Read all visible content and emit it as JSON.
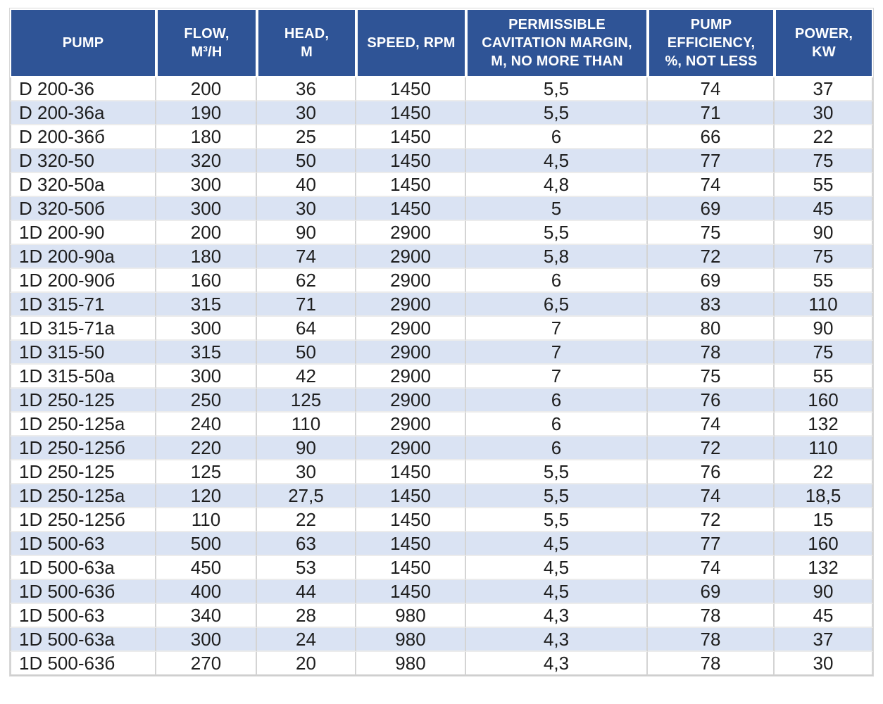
{
  "colors": {
    "header_bg": "#2F5496",
    "header_text": "#FFFFFF",
    "row_bg": "#FFFFFF",
    "row_alt_bg": "#DAE3F3",
    "cell_text": "#1E1E1E",
    "grid_line": "#D4D4D4"
  },
  "table": {
    "columns": [
      {
        "key": "pump",
        "label": "PUMP"
      },
      {
        "key": "flow",
        "label": "FLOW,\nM³/H"
      },
      {
        "key": "head",
        "label": "HEAD,\nM"
      },
      {
        "key": "speed",
        "label": "SPEED, RPM"
      },
      {
        "key": "cavitation",
        "label": "PERMISSIBLE\nCAVITATION MARGIN,\nM, NO MORE THAN"
      },
      {
        "key": "efficiency",
        "label": "PUMP\nEFFICIENCY,\n%, NOT LESS"
      },
      {
        "key": "power",
        "label": "POWER,\nKW"
      }
    ],
    "rows": [
      [
        "D 200-36",
        "200",
        "36",
        "1450",
        "5,5",
        "74",
        "37"
      ],
      [
        "D 200-36a",
        "190",
        "30",
        "1450",
        "5,5",
        "71",
        "30"
      ],
      [
        "D 200-36б",
        "180",
        "25",
        "1450",
        "6",
        "66",
        "22"
      ],
      [
        "D 320-50",
        "320",
        "50",
        "1450",
        "4,5",
        "77",
        "75"
      ],
      [
        "D 320-50a",
        "300",
        "40",
        "1450",
        "4,8",
        "74",
        "55"
      ],
      [
        "D 320-50б",
        "300",
        "30",
        "1450",
        "5",
        "69",
        "45"
      ],
      [
        "1D 200-90",
        "200",
        "90",
        "2900",
        "5,5",
        "75",
        "90"
      ],
      [
        "1D 200-90a",
        "180",
        "74",
        "2900",
        "5,8",
        "72",
        "75"
      ],
      [
        "1D 200-90б",
        "160",
        "62",
        "2900",
        "6",
        "69",
        "55"
      ],
      [
        "1D 315-71",
        "315",
        "71",
        "2900",
        "6,5",
        "83",
        "110"
      ],
      [
        "1D 315-71a",
        "300",
        "64",
        "2900",
        "7",
        "80",
        "90"
      ],
      [
        "1D 315-50",
        "315",
        "50",
        "2900",
        "7",
        "78",
        "75"
      ],
      [
        "1D 315-50a",
        "300",
        "42",
        "2900",
        "7",
        "75",
        "55"
      ],
      [
        "1D 250-125",
        "250",
        "125",
        "2900",
        "6",
        "76",
        "160"
      ],
      [
        "1D 250-125a",
        "240",
        "110",
        "2900",
        "6",
        "74",
        "132"
      ],
      [
        "1D 250-125б",
        "220",
        "90",
        "2900",
        "6",
        "72",
        "110"
      ],
      [
        "1D 250-125",
        "125",
        "30",
        "1450",
        "5,5",
        "76",
        "22"
      ],
      [
        "1D 250-125a",
        "120",
        "27,5",
        "1450",
        "5,5",
        "74",
        "18,5"
      ],
      [
        "1D 250-125б",
        "110",
        "22",
        "1450",
        "5,5",
        "72",
        "15"
      ],
      [
        "1D 500-63",
        "500",
        "63",
        "1450",
        "4,5",
        "77",
        "160"
      ],
      [
        "1D 500-63a",
        "450",
        "53",
        "1450",
        "4,5",
        "74",
        "132"
      ],
      [
        "1D 500-63б",
        "400",
        "44",
        "1450",
        "4,5",
        "69",
        "90"
      ],
      [
        "1D 500-63",
        "340",
        "28",
        "980",
        "4,3",
        "78",
        "45"
      ],
      [
        "1D 500-63a",
        "300",
        "24",
        "980",
        "4,3",
        "78",
        "37"
      ],
      [
        "1D 500-63б",
        "270",
        "20",
        "980",
        "4,3",
        "78",
        "30"
      ]
    ]
  }
}
